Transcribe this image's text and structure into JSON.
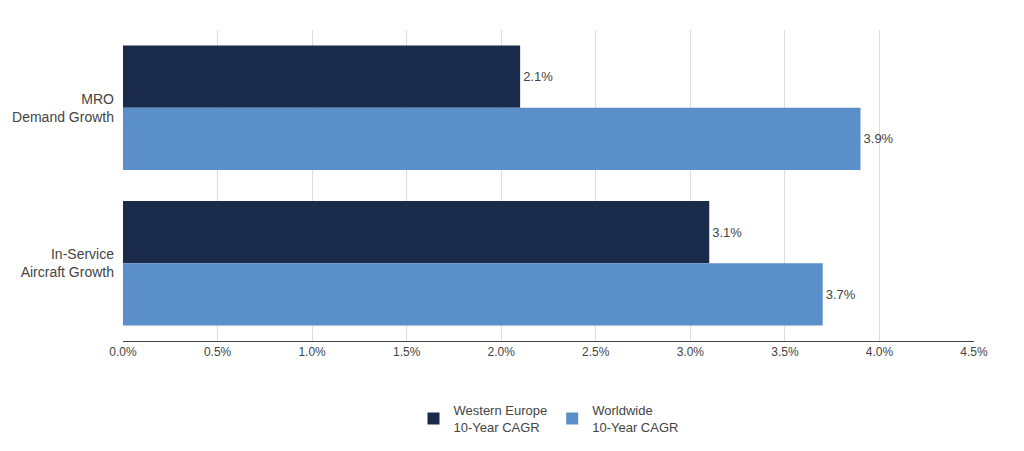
{
  "chart_data": {
    "type": "bar",
    "orientation": "horizontal",
    "categories": [
      "MRO\nDemand Growth",
      "In-Service\nAircraft Growth"
    ],
    "series": [
      {
        "name": "Western Europe\n10-Year CAGR",
        "color": "#1a2a4a",
        "values": [
          2.1,
          3.1
        ],
        "value_labels": [
          "2.1%",
          "3.1%"
        ]
      },
      {
        "name": "Worldwide\n10-Year CAGR",
        "color": "#5b8fc9",
        "values": [
          3.9,
          3.7
        ],
        "value_labels": [
          "3.9%",
          "3.7%"
        ]
      }
    ],
    "xlim": [
      0,
      4.5
    ],
    "xticks": [
      {
        "value": 0.0,
        "label": "0.0%"
      },
      {
        "value": 0.5,
        "label": "0.5%"
      },
      {
        "value": 1.0,
        "label": "1.0%"
      },
      {
        "value": 1.5,
        "label": "1.5%"
      },
      {
        "value": 2.0,
        "label": "2.0%"
      },
      {
        "value": 2.5,
        "label": "2.5%"
      },
      {
        "value": 3.0,
        "label": "3.0%"
      },
      {
        "value": 3.5,
        "label": "3.5%"
      },
      {
        "value": 4.0,
        "label": "4.0%"
      },
      {
        "value": 4.5,
        "label": "4.5%"
      }
    ],
    "grid": true,
    "legend": "bottom",
    "data_labels": true
  }
}
